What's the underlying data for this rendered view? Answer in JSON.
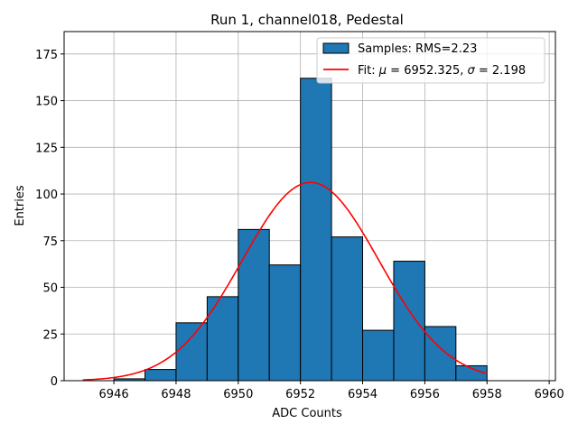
{
  "chart_data": {
    "type": "bar",
    "title": "Run 1, channel018, Pedestal",
    "xlabel": "ADC Counts",
    "ylabel": "Entries",
    "xlim": [
      6944.4,
      6960.2
    ],
    "ylim": [
      0,
      187
    ],
    "xticks": [
      6946,
      6948,
      6950,
      6952,
      6954,
      6956,
      6958,
      6960
    ],
    "yticks": [
      0,
      25,
      50,
      75,
      100,
      125,
      150,
      175
    ],
    "grid": true,
    "legend_position": "top-right",
    "histogram": {
      "name": "Samples: RMS=2.23",
      "color": "#1f77b4",
      "edge_color": "#000000",
      "bins": [
        {
          "x0": 6945,
          "x1": 6946,
          "value": 0
        },
        {
          "x0": 6946,
          "x1": 6947,
          "value": 1
        },
        {
          "x0": 6947,
          "x1": 6948,
          "value": 6
        },
        {
          "x0": 6948,
          "x1": 6949,
          "value": 31
        },
        {
          "x0": 6949,
          "x1": 6950,
          "value": 45
        },
        {
          "x0": 6950,
          "x1": 6951,
          "value": 81
        },
        {
          "x0": 6951,
          "x1": 6952,
          "value": 62
        },
        {
          "x0": 6952,
          "x1": 6953,
          "value": 162
        },
        {
          "x0": 6953,
          "x1": 6954,
          "value": 77
        },
        {
          "x0": 6954,
          "x1": 6955,
          "value": 27
        },
        {
          "x0": 6955,
          "x1": 6956,
          "value": 64
        },
        {
          "x0": 6956,
          "x1": 6957,
          "value": 29
        },
        {
          "x0": 6957,
          "x1": 6958,
          "value": 8
        }
      ]
    },
    "fit": {
      "name_prefix": "Fit: ",
      "mu_symbol": "μ",
      "mu_text": " = 6952.325, ",
      "sigma_symbol": "σ",
      "sigma_text": " = 2.198",
      "color": "#ff0000",
      "mu": 6952.325,
      "sigma": 2.198,
      "amplitude": 106.2,
      "x_range": [
        6945,
        6958
      ]
    }
  }
}
